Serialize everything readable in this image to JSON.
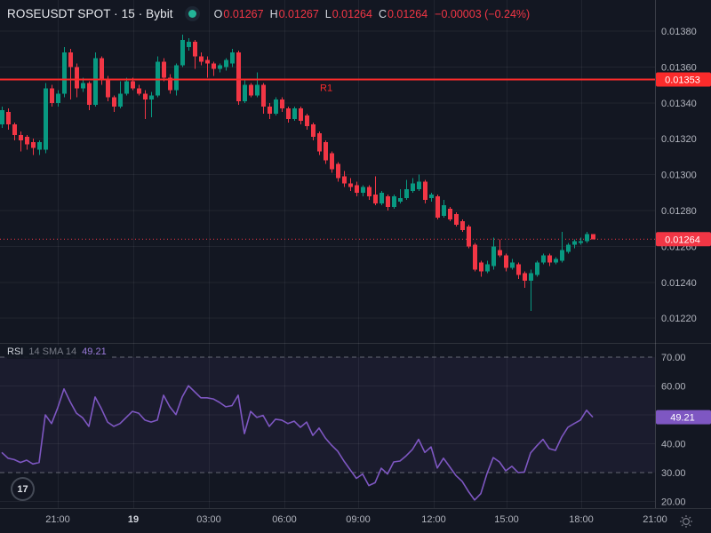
{
  "header": {
    "symbol": "ROSEUSDT SPOT · 15 · Bybit",
    "ohlc": {
      "o_label": "O",
      "o": "0.01267",
      "h_label": "H",
      "h": "0.01267",
      "l_label": "L",
      "l": "0.01264",
      "c_label": "C",
      "c": "0.01264",
      "change": "−0.00003 (−0.24%)"
    }
  },
  "rsi_legend": {
    "title": "RSI",
    "params": "14 SMA 14",
    "value": "49.21"
  },
  "logo": {
    "monogram": "17"
  },
  "colors": {
    "bg": "#131722",
    "up": "#089981",
    "down": "#f23645",
    "r1": "#fb2b2b",
    "rsi_line": "#7e57c2",
    "rsi_badge": "#7e57c2",
    "rsi_band_fill": "rgba(126,87,194,0.08)",
    "band_dash": "rgba(178,181,190,0.5)",
    "grid": "rgba(255,255,255,0.06)",
    "axis_text": "#b2b5be",
    "bright_text": "#d1d4dc",
    "muted_text": "#787b86",
    "axis_border": "rgba(255,255,255,0.12)",
    "badge_text": "#ffffff",
    "status_dot": "#23b598"
  },
  "price_axis": {
    "labels": [
      "0.01380",
      "0.01360",
      "0.01340",
      "0.01320",
      "0.01300",
      "0.01280",
      "0.01260",
      "0.01240",
      "0.01220"
    ],
    "values": [
      0.0138,
      0.0136,
      0.0134,
      0.0132,
      0.013,
      0.0128,
      0.0126,
      0.0124,
      0.0122
    ],
    "r1_badge": "0.01353",
    "last_badge": "0.01264"
  },
  "rsi_axis": {
    "labels": [
      "70.00",
      "60.00",
      "40.00",
      "30.00",
      "20.00"
    ],
    "values": [
      70,
      60,
      40,
      30,
      20
    ],
    "grid_values": [
      60,
      50,
      40,
      20
    ],
    "badge": "49.21",
    "badge_value": 49.21
  },
  "time_axis": {
    "labels": [
      "21:00",
      "19",
      "03:00",
      "06:00",
      "09:00",
      "12:00",
      "15:00",
      "18:00",
      "21:00"
    ],
    "xs": [
      65,
      150,
      235,
      320,
      403,
      488,
      570,
      654,
      737
    ],
    "bold": [
      false,
      true,
      false,
      false,
      false,
      false,
      false,
      false,
      false
    ]
  },
  "chart_data": {
    "type": "candlestick",
    "title": "ROSEUSDT SPOT",
    "interval": "15",
    "exchange": "Bybit",
    "last_ohlc": {
      "open": 0.01267,
      "high": 0.01267,
      "low": 0.01264,
      "close": 0.01264,
      "change": -3e-05,
      "change_pct": -0.24
    },
    "levels": {
      "r1_label": "R1",
      "r1": 0.01353,
      "last_price": 0.01264
    },
    "price_axis_range": [
      0.0122,
      0.0138
    ],
    "rsi_band": [
      30,
      70
    ],
    "rsi_current": 49.21,
    "candles_ohlc": [
      [
        0.01328,
        0.01338,
        0.01326,
        0.01336
      ],
      [
        0.01335,
        0.01337,
        0.01325,
        0.01328
      ],
      [
        0.01328,
        0.01329,
        0.01319,
        0.01322
      ],
      [
        0.01322,
        0.01324,
        0.01313,
        0.01319
      ],
      [
        0.01321,
        0.01322,
        0.01314,
        0.01317
      ],
      [
        0.01318,
        0.0132,
        0.01311,
        0.01315
      ],
      [
        0.01314,
        0.01319,
        0.01311,
        0.01318
      ],
      [
        0.01314,
        0.01351,
        0.01312,
        0.01348
      ],
      [
        0.01348,
        0.0135,
        0.01338,
        0.0134
      ],
      [
        0.0134,
        0.01347,
        0.01338,
        0.01345
      ],
      [
        0.01345,
        0.01371,
        0.01343,
        0.01368
      ],
      [
        0.01368,
        0.0137,
        0.01342,
        0.0136
      ],
      [
        0.0136,
        0.01362,
        0.01343,
        0.01348
      ],
      [
        0.01348,
        0.01354,
        0.01346,
        0.01351
      ],
      [
        0.01351,
        0.01352,
        0.01336,
        0.01339
      ],
      [
        0.01339,
        0.01368,
        0.01338,
        0.01365
      ],
      [
        0.01365,
        0.01366,
        0.0135,
        0.01353
      ],
      [
        0.01353,
        0.01355,
        0.01341,
        0.01343
      ],
      [
        0.01343,
        0.01344,
        0.01335,
        0.01338
      ],
      [
        0.01338,
        0.01352,
        0.01337,
        0.01345
      ],
      [
        0.01345,
        0.01354,
        0.01344,
        0.01352
      ],
      [
        0.01352,
        0.01354,
        0.01347,
        0.01348
      ],
      [
        0.01348,
        0.0135,
        0.01344,
        0.01345
      ],
      [
        0.01345,
        0.01347,
        0.01331,
        0.01342
      ],
      [
        0.01342,
        0.01346,
        0.01332,
        0.01344
      ],
      [
        0.01344,
        0.01366,
        0.01343,
        0.01363
      ],
      [
        0.01363,
        0.01365,
        0.01352,
        0.01354
      ],
      [
        0.01354,
        0.01356,
        0.01345,
        0.01347
      ],
      [
        0.01347,
        0.01362,
        0.01344,
        0.01361
      ],
      [
        0.01361,
        0.01378,
        0.0136,
        0.01375
      ],
      [
        0.01371,
        0.01376,
        0.01369,
        0.01374
      ],
      [
        0.01374,
        0.01375,
        0.01359,
        0.01366
      ],
      [
        0.01366,
        0.01368,
        0.01361,
        0.01363
      ],
      [
        0.01364,
        0.01366,
        0.01354,
        0.01362
      ],
      [
        0.01362,
        0.01363,
        0.01355,
        0.01359
      ],
      [
        0.01359,
        0.01362,
        0.01357,
        0.01361
      ],
      [
        0.0136,
        0.01365,
        0.01358,
        0.01364
      ],
      [
        0.01362,
        0.0137,
        0.0136,
        0.01368
      ],
      [
        0.01368,
        0.01369,
        0.01339,
        0.01341
      ],
      [
        0.01341,
        0.01353,
        0.0134,
        0.0135
      ],
      [
        0.0135,
        0.01351,
        0.01343,
        0.01344
      ],
      [
        0.01344,
        0.01357,
        0.01343,
        0.0135
      ],
      [
        0.0135,
        0.01351,
        0.01334,
        0.01338
      ],
      [
        0.01338,
        0.0134,
        0.01331,
        0.01334
      ],
      [
        0.01334,
        0.01343,
        0.01333,
        0.01342
      ],
      [
        0.01342,
        0.01343,
        0.01335,
        0.01337
      ],
      [
        0.01337,
        0.01338,
        0.01329,
        0.01331
      ],
      [
        0.01331,
        0.01338,
        0.0133,
        0.01337
      ],
      [
        0.01337,
        0.01338,
        0.01328,
        0.0133
      ],
      [
        0.01333,
        0.01334,
        0.01325,
        0.01327
      ],
      [
        0.01328,
        0.01329,
        0.01319,
        0.01321
      ],
      [
        0.01323,
        0.01324,
        0.01311,
        0.01313
      ],
      [
        0.01318,
        0.01319,
        0.01306,
        0.01308
      ],
      [
        0.01312,
        0.01313,
        0.01301,
        0.01303
      ],
      [
        0.01306,
        0.01307,
        0.01296,
        0.01298
      ],
      [
        0.01299,
        0.01302,
        0.01293,
        0.01295
      ],
      [
        0.01295,
        0.01298,
        0.01291,
        0.01293
      ],
      [
        0.01294,
        0.01296,
        0.01288,
        0.0129
      ],
      [
        0.0129,
        0.01294,
        0.01288,
        0.01293
      ],
      [
        0.01293,
        0.01294,
        0.01286,
        0.01288
      ],
      [
        0.01289,
        0.01299,
        0.01283,
        0.01284
      ],
      [
        0.01284,
        0.01291,
        0.01283,
        0.0129
      ],
      [
        0.01288,
        0.01289,
        0.0128,
        0.01282
      ],
      [
        0.01282,
        0.01289,
        0.01281,
        0.01288
      ],
      [
        0.01285,
        0.01292,
        0.01284,
        0.01287
      ],
      [
        0.01287,
        0.01297,
        0.01286,
        0.01292
      ],
      [
        0.01291,
        0.01298,
        0.0129,
        0.01295
      ],
      [
        0.01292,
        0.013,
        0.01291,
        0.01296
      ],
      [
        0.01296,
        0.01297,
        0.01284,
        0.01286
      ],
      [
        0.01287,
        0.0129,
        0.01285,
        0.01289
      ],
      [
        0.01288,
        0.01289,
        0.01275,
        0.01276
      ],
      [
        0.01277,
        0.01286,
        0.01276,
        0.01283
      ],
      [
        0.01281,
        0.01282,
        0.01274,
        0.01275
      ],
      [
        0.01278,
        0.01279,
        0.01271,
        0.01272
      ],
      [
        0.01274,
        0.01275,
        0.01268,
        0.01269
      ],
      [
        0.01271,
        0.01272,
        0.01259,
        0.0126
      ],
      [
        0.01261,
        0.01262,
        0.01246,
        0.01247
      ],
      [
        0.01251,
        0.01252,
        0.01243,
        0.01246
      ],
      [
        0.01246,
        0.01252,
        0.01245,
        0.0125
      ],
      [
        0.01249,
        0.01265,
        0.01247,
        0.0126
      ],
      [
        0.01258,
        0.01264,
        0.01254,
        0.01255
      ],
      [
        0.01255,
        0.01256,
        0.01246,
        0.01248
      ],
      [
        0.01248,
        0.01253,
        0.01247,
        0.01251
      ],
      [
        0.0125,
        0.01251,
        0.01242,
        0.01244
      ],
      [
        0.01245,
        0.01246,
        0.01237,
        0.01241
      ],
      [
        0.01241,
        0.01247,
        0.01224,
        0.01245
      ],
      [
        0.01244,
        0.01252,
        0.01243,
        0.01251
      ],
      [
        0.01251,
        0.01256,
        0.0125,
        0.01255
      ],
      [
        0.01255,
        0.01256,
        0.01249,
        0.01251
      ],
      [
        0.01251,
        0.01254,
        0.0125,
        0.01253
      ],
      [
        0.01252,
        0.01268,
        0.01251,
        0.01258
      ],
      [
        0.01257,
        0.01262,
        0.01256,
        0.01261
      ],
      [
        0.01261,
        0.01264,
        0.01259,
        0.01263
      ],
      [
        0.01262,
        0.01265,
        0.01261,
        0.01263
      ],
      [
        0.01263,
        0.01268,
        0.01262,
        0.01267
      ],
      [
        0.01267,
        0.01267,
        0.01264,
        0.01264
      ]
    ],
    "rsi_series": [
      37.0,
      35.0,
      34.5,
      33.5,
      34.3,
      33.0,
      33.5,
      50.0,
      47.0,
      52.5,
      59.0,
      54.5,
      50.6,
      49.0,
      46.0,
      56.2,
      52.2,
      47.5,
      46.0,
      47.0,
      49.1,
      51.2,
      50.6,
      48.2,
      47.5,
      48.2,
      56.8,
      52.8,
      50.1,
      56.2,
      60.1,
      58.0,
      55.9,
      55.9,
      55.5,
      54.3,
      52.8,
      53.2,
      56.8,
      43.5,
      51.2,
      49.1,
      49.8,
      46.0,
      48.5,
      48.2,
      47.0,
      47.8,
      45.7,
      47.5,
      42.9,
      45.4,
      42.0,
      39.5,
      37.4,
      34.0,
      31.0,
      28.0,
      29.5,
      25.5,
      26.5,
      31.5,
      29.5,
      33.7,
      34.0,
      35.8,
      38.0,
      41.5,
      37.0,
      38.9,
      31.6,
      35.0,
      32.0,
      29.0,
      27.0,
      23.5,
      20.5,
      22.7,
      29.7,
      35.2,
      33.7,
      30.6,
      32.2,
      30.0,
      30.2,
      36.8,
      39.3,
      41.5,
      38.3,
      37.7,
      42.3,
      45.7,
      47.0,
      48.2,
      51.6,
      49.21
    ]
  }
}
